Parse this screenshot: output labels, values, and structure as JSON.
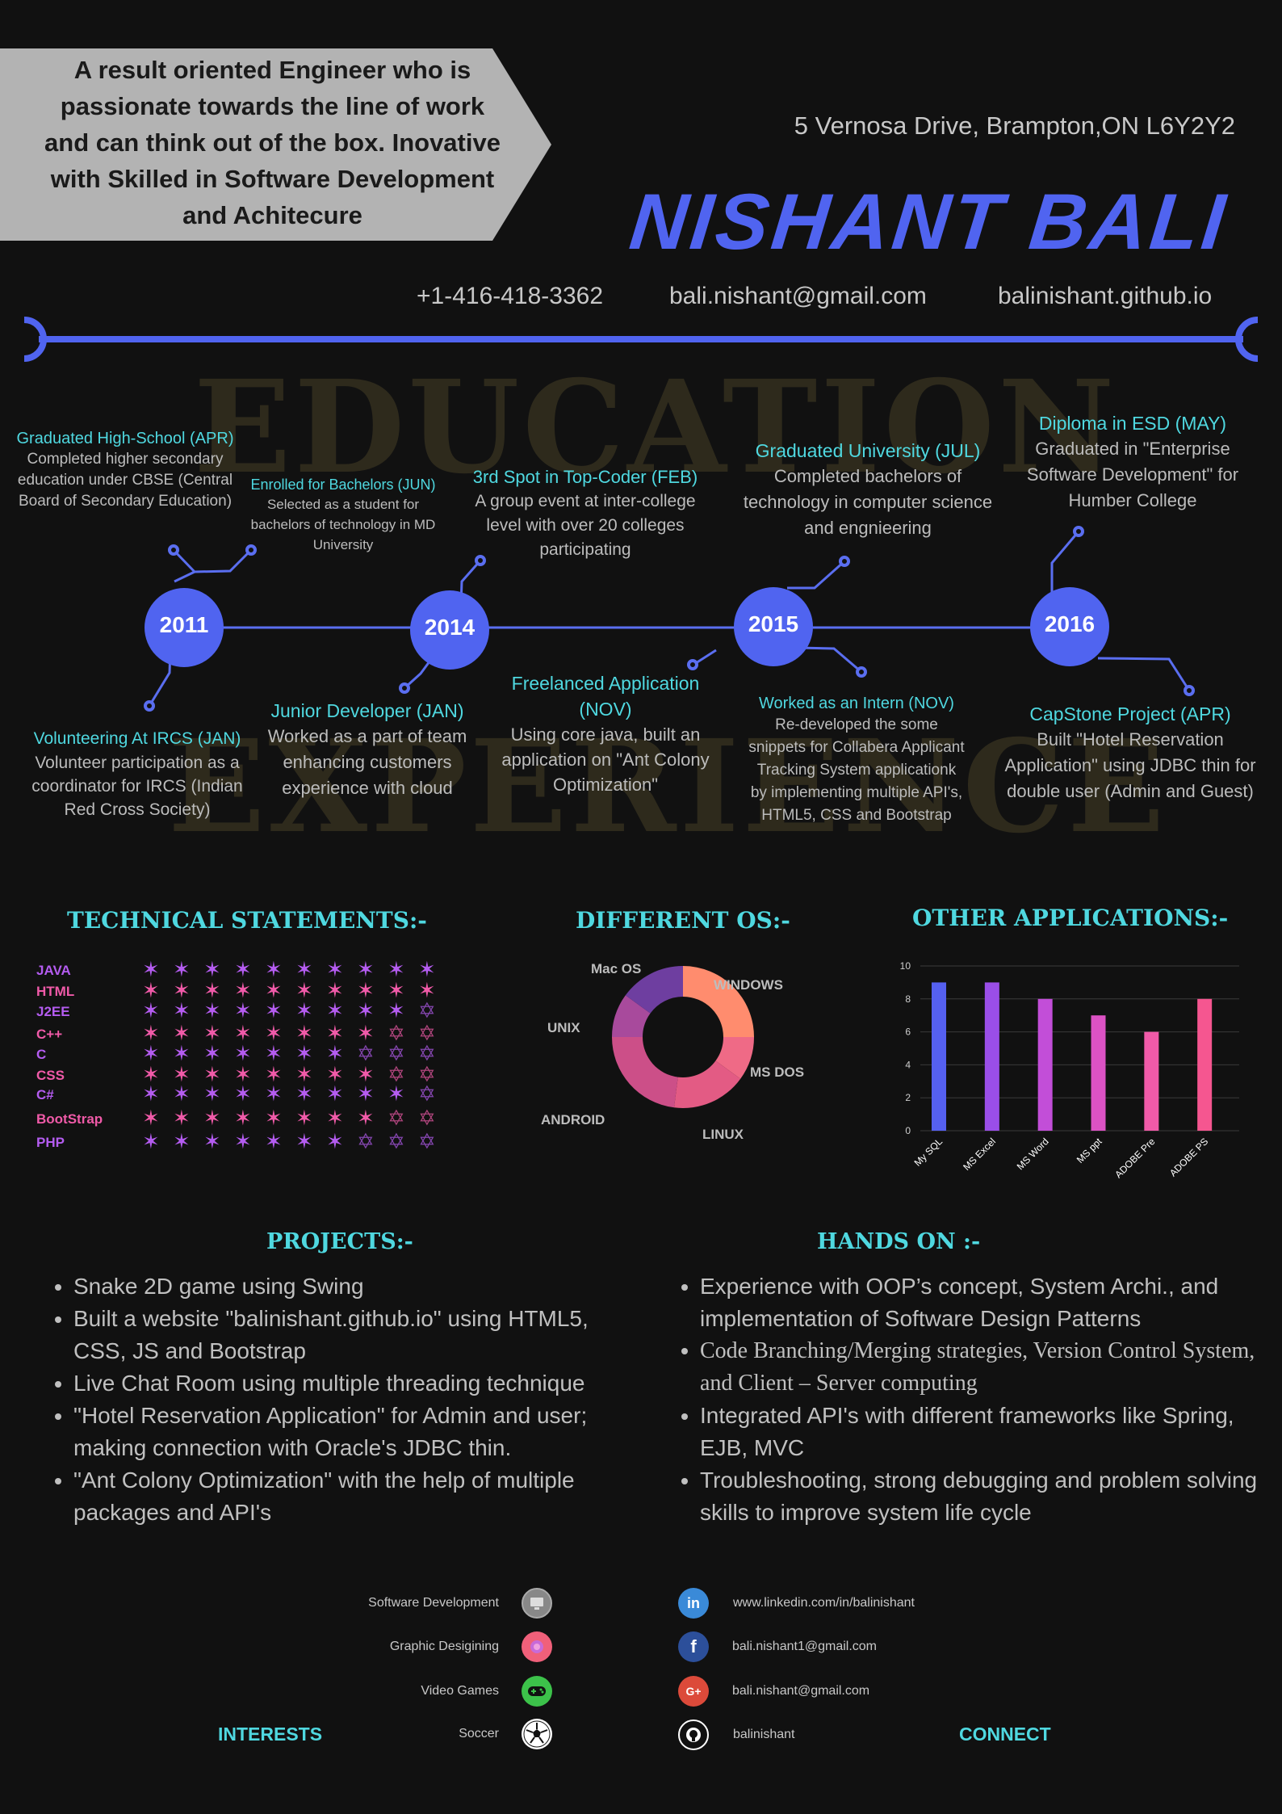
{
  "header": {
    "tagline": "A result oriented Engineer who is passionate towards the line of work and can think out of the box. Inovative with Skilled in Software Development and Achitecure",
    "address": "5 Vernosa Drive, Brampton,ON L6Y2Y2",
    "name": "NISHANT  BALI",
    "phone": "+1-416-418-3362",
    "email": "bali.nishant@gmail.com",
    "website": "balinishant.github.io"
  },
  "watermarks": {
    "education": "EDUCATION",
    "experience": "EXPERIENCE"
  },
  "timeline": {
    "years": [
      "2011",
      "2014",
      "2015",
      "2016"
    ],
    "education": [
      {
        "title": "Graduated High-School (APR)",
        "body": "Completed higher secondary education under CBSE (Central Board of Secondary Education)"
      },
      {
        "title": "Enrolled for Bachelors (JUN)",
        "body": "Selected as a student for bachelors of technology in MD University"
      },
      {
        "title": "3rd Spot in Top-Coder (FEB)",
        "body": "A group event at inter-college level with over 20 colleges participating"
      },
      {
        "title": "Graduated University (JUL)",
        "body": "Completed bachelors of technology in computer science and engnieering"
      },
      {
        "title": "Diploma in ESD (MAY)",
        "body": "Graduated in \"Enterprise Software Development\" for Humber College"
      }
    ],
    "experience": [
      {
        "title": "Volunteering At IRCS (JAN)",
        "body": "Volunteer participation as a coordinator for IRCS (Indian Red Cross Society)"
      },
      {
        "title": "Junior Developer (JAN)",
        "body": "Worked as a part of team enhancing customers experience with cloud"
      },
      {
        "title": "Freelanced Application (NOV)",
        "body": "Using core java, built an application on \"Ant Colony Optimization\""
      },
      {
        "title": "Worked as an Intern (NOV)",
        "body": "Re-developed the some snippets for Collabera Applicant Tracking System applicationk by implementing multiple API's, HTML5, CSS and Bootstrap"
      },
      {
        "title": "CapStone Project  (APR)",
        "body": "Built \"Hotel Reservation Application\" using JDBC thin for double user (Admin and Guest)"
      }
    ]
  },
  "technical": {
    "title": "TECHNICAL STATEMENTS:-",
    "max_stars": 10,
    "skills": [
      {
        "name": "JAVA",
        "rating": 10,
        "color": "#b45cf0"
      },
      {
        "name": "HTML",
        "rating": 10,
        "color": "#f05aa8"
      },
      {
        "name": "J2EE",
        "rating": 9,
        "color": "#b45cf0"
      },
      {
        "name": "C++",
        "rating": 8,
        "color": "#f05aa8"
      },
      {
        "name": "C",
        "rating": 7,
        "color": "#b45cf0"
      },
      {
        "name": "CSS",
        "rating": 8,
        "color": "#f05aa8"
      },
      {
        "name": "C#",
        "rating": 9,
        "color": "#b45cf0"
      },
      {
        "name": "BootStrap",
        "rating": 8,
        "color": "#f05aa8"
      },
      {
        "name": "PHP",
        "rating": 7,
        "color": "#b45cf0"
      }
    ]
  },
  "os": {
    "title": "DIFFERENT  OS:-",
    "slices": [
      {
        "label": "WINDOWS",
        "value": 25,
        "color": "#ff8c6e"
      },
      {
        "label": "MS DOS",
        "value": 10,
        "color": "#ef6a86"
      },
      {
        "label": "LINUX",
        "value": 17,
        "color": "#e35b84"
      },
      {
        "label": "ANDROID",
        "value": 23,
        "color": "#cc4f88"
      },
      {
        "label": "UNIX",
        "value": 10,
        "color": "#a84a9c"
      },
      {
        "label": "Mac OS",
        "value": 15,
        "color": "#6e3ea0"
      }
    ]
  },
  "chart_data": {
    "type": "bar",
    "title": "OTHER APPLICATIONS:-",
    "categories": [
      "My SQL",
      "MS Excel",
      "MS Word",
      "MS ppt",
      "ADOBE Pre",
      "ADOBE PS"
    ],
    "values": [
      9,
      9,
      8,
      7,
      6,
      8
    ],
    "colors": [
      "#5560f0",
      "#9a4ee8",
      "#c24ed8",
      "#dc52c4",
      "#f05aa8",
      "#f55690"
    ],
    "ylim": [
      0,
      10
    ],
    "yticks": [
      "0",
      "2",
      "4",
      "6",
      "8",
      "10"
    ],
    "grid": true
  },
  "projects": {
    "title": "PROJECTS:-",
    "items": [
      "Snake 2D game using Swing",
      "Built a website \"balinishant.github.io\" using HTML5, CSS, JS and Bootstrap",
      "Live  Chat Room using multiple threading technique",
      "\"Hotel Reservation Application\" for Admin and user; making connection with Oracle's JDBC thin.",
      "\"Ant Colony Optimization\" with the help of multiple packages and API's"
    ]
  },
  "hands_on": {
    "title": "HANDS ON :-",
    "items": [
      "Experience with OOP’s concept, System Archi., and implementation of Software Design Patterns",
      "Code Branching/Merging strategies, Version Control System, and Client – Server computing",
      "Integrated API's with different frameworks like Spring, EJB, MVC",
      "Troubleshooting, strong debugging and problem solving skills to improve system life cycle"
    ]
  },
  "interests": {
    "title": "INTERESTS",
    "items": [
      {
        "label": "Software Development",
        "icon": "computer-icon",
        "color": "#888888"
      },
      {
        "label": "Graphic Desigining",
        "icon": "palette-icon",
        "color": "#f0607a"
      },
      {
        "label": "Video Games",
        "icon": "gamepad-icon",
        "color": "#3cc24a"
      },
      {
        "label": "Soccer",
        "icon": "soccer-ball-icon",
        "color": "#ffffff"
      }
    ]
  },
  "connect": {
    "title": "CONNECT",
    "items": [
      {
        "label": "www.linkedin.com/in/balinishant",
        "icon": "linkedin-icon",
        "glyph": "in",
        "color": "#3a8ad8"
      },
      {
        "label": "bali.nishant1@gmail.com",
        "icon": "facebook-icon",
        "glyph": "f",
        "color": "#2c4f9a"
      },
      {
        "label": "bali.nishant@gmail.com",
        "icon": "google-plus-icon",
        "glyph": "G+",
        "color": "#dc4a3a"
      },
      {
        "label": "balinishant",
        "icon": "github-icon",
        "glyph": "●",
        "color": "#111111"
      }
    ]
  }
}
